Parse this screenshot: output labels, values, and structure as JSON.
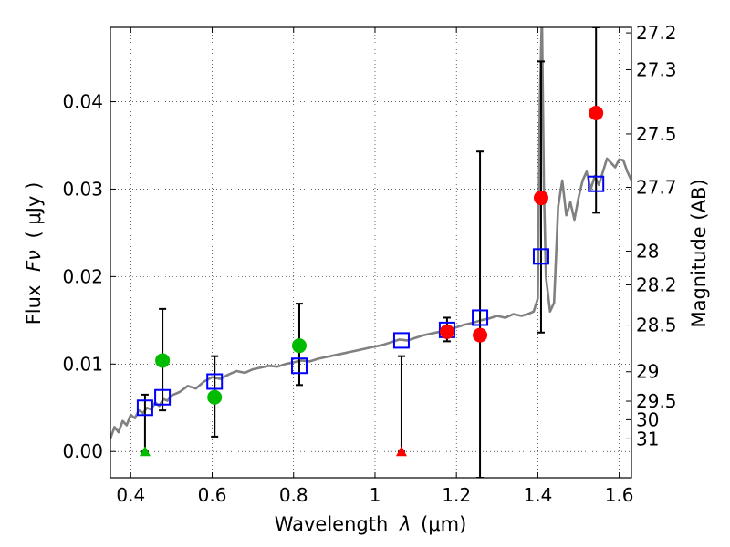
{
  "chart_data": {
    "type": "scatter",
    "xlabel_prefix": "Wavelength",
    "xlabel_lambda": "λ",
    "xlabel_unit": "(μm)",
    "ylabel_prefix": "Flux",
    "ylabel_symbol": "Fν",
    "ylabel_unit": "( μJy )",
    "y2label": "Magnitude (AB)",
    "xlim": [
      0.35,
      1.63
    ],
    "ylim": [
      -0.003,
      0.0485
    ],
    "grid": true,
    "x_ticks": [
      {
        "value": 0.4,
        "label": "0.4"
      },
      {
        "value": 0.6,
        "label": "0.6"
      },
      {
        "value": 0.8,
        "label": "0.8"
      },
      {
        "value": 1.0,
        "label": "1"
      },
      {
        "value": 1.2,
        "label": "1.2"
      },
      {
        "value": 1.4,
        "label": "1.4"
      },
      {
        "value": 1.6,
        "label": "1.6"
      }
    ],
    "y_ticks": [
      {
        "value": 0.0,
        "label": "0.00"
      },
      {
        "value": 0.01,
        "label": "0.01"
      },
      {
        "value": 0.02,
        "label": "0.02"
      },
      {
        "value": 0.03,
        "label": "0.03"
      },
      {
        "value": 0.04,
        "label": "0.04"
      }
    ],
    "mag_ticks": [
      {
        "mag": 27.2,
        "label": "27.2"
      },
      {
        "mag": 27.3,
        "label": "27.3"
      },
      {
        "mag": 27.5,
        "label": "27.5"
      },
      {
        "mag": 27.7,
        "label": "27.7"
      },
      {
        "mag": 28.0,
        "label": "28"
      },
      {
        "mag": 28.2,
        "label": "28.2"
      },
      {
        "mag": 28.5,
        "label": "28.5"
      },
      {
        "mag": 29.0,
        "label": "29"
      },
      {
        "mag": 29.5,
        "label": "29.5"
      },
      {
        "mag": 30.0,
        "label": "30"
      },
      {
        "mag": 31.0,
        "label": "31"
      }
    ],
    "sed_model": {
      "color": "#808080",
      "x": [
        0.35,
        0.36,
        0.37,
        0.38,
        0.39,
        0.4,
        0.41,
        0.42,
        0.43,
        0.44,
        0.45,
        0.46,
        0.47,
        0.48,
        0.49,
        0.5,
        0.52,
        0.54,
        0.56,
        0.58,
        0.6,
        0.62,
        0.64,
        0.66,
        0.68,
        0.7,
        0.72,
        0.74,
        0.76,
        0.78,
        0.8,
        0.82,
        0.84,
        0.86,
        0.88,
        0.9,
        0.92,
        0.94,
        0.96,
        0.98,
        1.0,
        1.02,
        1.04,
        1.06,
        1.08,
        1.1,
        1.12,
        1.14,
        1.16,
        1.18,
        1.2,
        1.22,
        1.24,
        1.26,
        1.28,
        1.3,
        1.32,
        1.34,
        1.36,
        1.38,
        1.39,
        1.4,
        1.405,
        1.41,
        1.415,
        1.42,
        1.43,
        1.44,
        1.45,
        1.46,
        1.47,
        1.48,
        1.49,
        1.5,
        1.51,
        1.52,
        1.53,
        1.54,
        1.55,
        1.56,
        1.57,
        1.58,
        1.59,
        1.6,
        1.61,
        1.62,
        1.63
      ],
      "y": [
        0.0015,
        0.0028,
        0.0022,
        0.0035,
        0.003,
        0.0042,
        0.0038,
        0.0047,
        0.0044,
        0.005,
        0.0048,
        0.0056,
        0.0052,
        0.006,
        0.0058,
        0.0064,
        0.0068,
        0.0075,
        0.0072,
        0.008,
        0.0085,
        0.0083,
        0.0088,
        0.0092,
        0.009,
        0.0094,
        0.0096,
        0.0098,
        0.0097,
        0.01,
        0.0102,
        0.0104,
        0.0103,
        0.0106,
        0.0108,
        0.011,
        0.0112,
        0.0114,
        0.0116,
        0.0118,
        0.012,
        0.0122,
        0.0125,
        0.0128,
        0.0127,
        0.013,
        0.0133,
        0.0135,
        0.0137,
        0.0139,
        0.0142,
        0.0145,
        0.0147,
        0.015,
        0.0152,
        0.0155,
        0.0153,
        0.0157,
        0.0155,
        0.0158,
        0.016,
        0.0175,
        0.04,
        0.05,
        0.03,
        0.02,
        0.016,
        0.017,
        0.028,
        0.031,
        0.027,
        0.0285,
        0.0265,
        0.029,
        0.031,
        0.032,
        0.03,
        0.0315,
        0.0305,
        0.032,
        0.0335,
        0.033,
        0.0325,
        0.0334,
        0.0333,
        0.032,
        0.031
      ]
    },
    "model_fluxes": {
      "marker": "open-square",
      "color": "#0000ff",
      "x": [
        0.435,
        0.478,
        0.606,
        0.814,
        1.065,
        1.177,
        1.258,
        1.408,
        1.543
      ],
      "y": [
        0.005,
        0.0062,
        0.008,
        0.0098,
        0.0127,
        0.0139,
        0.0153,
        0.0223,
        0.0306
      ]
    },
    "obs_optical": {
      "marker": "filled-circle",
      "color": "#00bb00",
      "x": [
        0.478,
        0.606,
        0.814
      ],
      "y": [
        0.0104,
        0.0062,
        0.0121
      ],
      "yerr_lo": [
        0.0047,
        0.0017,
        0.0076
      ],
      "yerr_hi": [
        0.0163,
        0.0109,
        0.0169
      ]
    },
    "obs_nir": {
      "marker": "filled-circle",
      "color": "#ff0000",
      "x": [
        1.177,
        1.258,
        1.408,
        1.543
      ],
      "y": [
        0.0137,
        0.0133,
        0.029,
        0.0387
      ],
      "yerr_lo": [
        0.0126,
        -0.003,
        0.0136,
        0.0273
      ],
      "yerr_hi": [
        0.0153,
        0.0343,
        0.0446,
        0.0485
      ]
    },
    "upper_limits": [
      {
        "x": 0.435,
        "y": 0.0,
        "err_hi": 0.0065,
        "color": "#00bb00"
      },
      {
        "x": 1.065,
        "y": 0.0,
        "err_hi": 0.0109,
        "color": "#ff0000"
      }
    ]
  }
}
